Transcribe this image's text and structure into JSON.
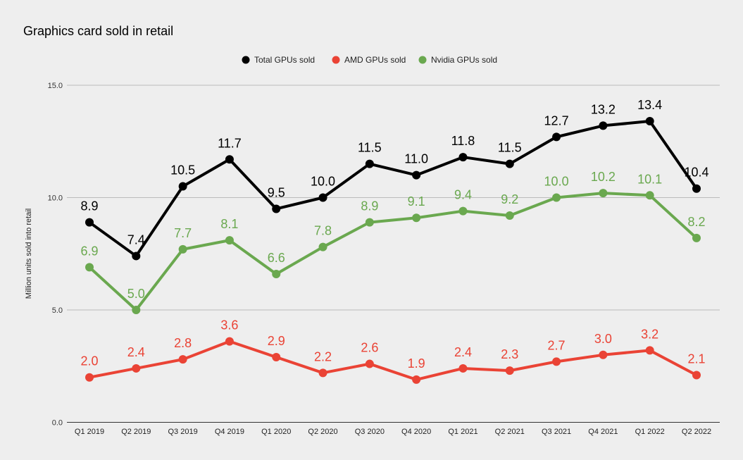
{
  "chart_data": {
    "type": "line",
    "title": "Graphics card sold in retail",
    "xlabel": "",
    "ylabel": "Million units sold into retail",
    "ylim": [
      0,
      15
    ],
    "yticks": [
      "0.0",
      "5.0",
      "10.0",
      "15.0"
    ],
    "grid": true,
    "legend_position": "top",
    "categories": [
      "Q1 2019",
      "Q2 2019",
      "Q3 2019",
      "Q4 2019",
      "Q1 2020",
      "Q2 2020",
      "Q3 2020",
      "Q4 2020",
      "Q1 2021",
      "Q2 2021",
      "Q3 2021",
      "Q4 2021",
      "Q1 2022",
      "Q2 2022"
    ],
    "series": [
      {
        "name": "Total GPUs sold",
        "color": "#000000",
        "values": [
          8.9,
          7.4,
          10.5,
          11.7,
          9.5,
          10.0,
          11.5,
          11.0,
          11.8,
          11.5,
          12.7,
          13.2,
          13.4,
          10.4
        ]
      },
      {
        "name": "AMD GPUs sold",
        "color": "#ea4335",
        "values": [
          2.0,
          2.4,
          2.8,
          3.6,
          2.9,
          2.2,
          2.6,
          1.9,
          2.4,
          2.3,
          2.7,
          3.0,
          3.2,
          2.1
        ]
      },
      {
        "name": "Nvidia GPUs sold",
        "color": "#6aa84f",
        "values": [
          6.9,
          5.0,
          7.7,
          8.1,
          6.6,
          7.8,
          8.9,
          9.1,
          9.4,
          9.2,
          10.0,
          10.2,
          10.1,
          8.2
        ]
      }
    ]
  }
}
